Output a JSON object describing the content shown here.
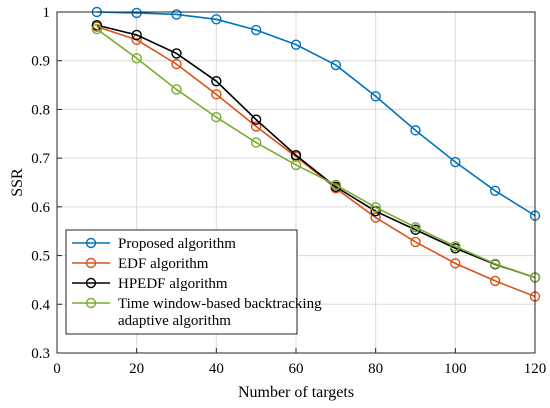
{
  "chart_data": {
    "type": "line",
    "xlabel": "Number of targets",
    "ylabel": "SSR",
    "xlim": [
      0,
      120
    ],
    "ylim": [
      0.3,
      1.0
    ],
    "xticks": [
      "0",
      "20",
      "40",
      "60",
      "80",
      "100",
      "120"
    ],
    "yticks": [
      "0.3",
      "0.4",
      "0.5",
      "0.6",
      "0.7",
      "0.8",
      "0.9",
      "1"
    ],
    "grid": true,
    "legend_position": "bottom-left",
    "x": [
      10,
      20,
      30,
      40,
      50,
      60,
      70,
      80,
      90,
      100,
      110,
      120
    ],
    "series": [
      {
        "name": "Proposed algorithm",
        "color": "#0072BD",
        "marker": "circle",
        "values": [
          1.0,
          0.998,
          0.995,
          0.985,
          0.963,
          0.933,
          0.891,
          0.827,
          0.757,
          0.692,
          0.633,
          0.582
        ]
      },
      {
        "name": "EDF algorithm",
        "color": "#D95319",
        "marker": "circle",
        "values": [
          0.97,
          0.943,
          0.893,
          0.831,
          0.765,
          0.703,
          0.638,
          0.578,
          0.528,
          0.484,
          0.448,
          0.416
        ]
      },
      {
        "name": "HPEDF algorithm",
        "color": "#000000",
        "marker": "circle",
        "values": [
          0.973,
          0.953,
          0.915,
          0.858,
          0.779,
          0.706,
          0.641,
          0.591,
          0.553,
          0.515,
          0.482,
          0.455
        ]
      },
      {
        "name": "Time window-based backtracking adaptive algorithm",
        "legend_lines": [
          "Time window-based backtracking",
          "adaptive algorithm"
        ],
        "color": "#77AC30",
        "marker": "circle",
        "values": [
          0.965,
          0.905,
          0.841,
          0.784,
          0.732,
          0.686,
          0.645,
          0.599,
          0.558,
          0.519,
          0.483,
          0.455
        ]
      }
    ]
  }
}
